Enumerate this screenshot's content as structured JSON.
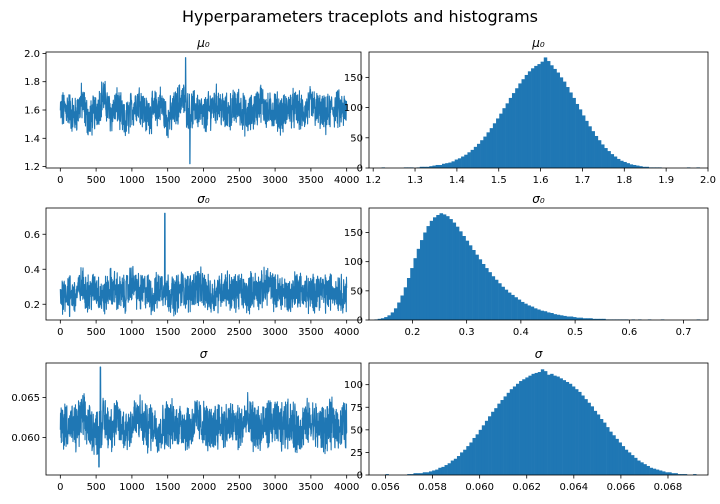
{
  "figure": {
    "title": "Hyperparameters traceplots and histograms",
    "series_color": "#1f77b4"
  },
  "chart_data": [
    {
      "type": "line",
      "title": "μ₀",
      "xlabel": "",
      "ylabel": "",
      "xlim": [
        -200,
        4200
      ],
      "ylim": [
        1.19,
        2.01
      ],
      "xticks": [
        0,
        500,
        1000,
        1500,
        2000,
        2500,
        3000,
        3500,
        4000
      ],
      "yticks": [
        1.2,
        1.4,
        1.6,
        1.8,
        2.0
      ],
      "ytick_labels": [
        "1.2",
        "1.4",
        "1.6",
        "1.8",
        "2.0"
      ],
      "n_samples": 4000,
      "series": [
        {
          "x_step": 100,
          "values": [
            1.58,
            1.62,
            1.55,
            1.66,
            1.52,
            1.6,
            1.7,
            1.57,
            1.63,
            1.5,
            1.61,
            1.67,
            1.56,
            1.59,
            1.64,
            1.53,
            1.6,
            1.69,
            1.58,
            1.62,
            1.55,
            1.61,
            1.65,
            1.57,
            1.6,
            1.63,
            1.54,
            1.59,
            1.66,
            1.58,
            1.61,
            1.56,
            1.62,
            1.6,
            1.57,
            1.64,
            1.59,
            1.55,
            1.61,
            1.6,
            1.58
          ]
        }
      ],
      "summary": {
        "typical_band": [
          1.42,
          1.78
        ],
        "max": 1.97,
        "max_at": 1750,
        "min": 1.22,
        "min_at": 1810
      }
    },
    {
      "type": "bar",
      "title": "μ₀",
      "xlim": [
        1.19,
        2.0
      ],
      "ylim": [
        0,
        192
      ],
      "xticks": [
        1.2,
        1.3,
        1.4,
        1.5,
        1.6,
        1.7,
        1.8,
        1.9,
        2.0
      ],
      "xtick_labels": [
        "1.2",
        "1.3",
        "1.4",
        "1.5",
        "1.6",
        "1.7",
        "1.8",
        "1.9",
        "2.0"
      ],
      "yticks": [
        0,
        50,
        100,
        150
      ],
      "bin_range": [
        1.22,
        1.98
      ],
      "n_bins": 100,
      "distribution": {
        "mode": 1.61,
        "peak_count": 183,
        "spread": 0.082
      },
      "values": [
        1,
        0,
        0,
        0,
        0,
        0,
        0,
        1,
        1,
        1,
        0,
        1,
        2,
        2,
        2,
        3,
        4,
        5,
        5,
        7,
        8,
        9,
        11,
        14,
        16,
        19,
        22,
        26,
        30,
        35,
        40,
        46,
        52,
        59,
        66,
        74,
        82,
        90,
        99,
        107,
        116,
        124,
        132,
        140,
        147,
        154,
        160,
        165,
        169,
        172,
        176,
        183,
        177,
        170,
        164,
        158,
        150,
        143,
        134,
        125,
        116,
        106,
        97,
        87,
        78,
        69,
        61,
        53,
        46,
        39,
        33,
        28,
        23,
        19,
        15,
        12,
        10,
        8,
        6,
        5,
        4,
        3,
        2,
        2,
        1,
        1,
        1,
        1,
        0,
        0,
        0,
        0,
        0,
        0,
        0,
        0,
        1,
        0,
        0,
        1
      ]
    },
    {
      "type": "line",
      "title": "σ₀",
      "xlim": [
        -200,
        4200
      ],
      "ylim": [
        0.11,
        0.75
      ],
      "xticks": [
        0,
        500,
        1000,
        1500,
        2000,
        2500,
        3000,
        3500,
        4000
      ],
      "yticks": [
        0.2,
        0.4,
        0.6
      ],
      "ytick_labels": [
        "0.2",
        "0.4",
        "0.6"
      ],
      "n_samples": 4000,
      "series": [
        {
          "x_step": 100,
          "values": [
            0.25,
            0.28,
            0.24,
            0.31,
            0.26,
            0.29,
            0.23,
            0.3,
            0.27,
            0.25,
            0.33,
            0.26,
            0.28,
            0.24,
            0.3,
            0.27,
            0.25,
            0.29,
            0.26,
            0.31,
            0.28,
            0.24,
            0.27,
            0.3,
            0.26,
            0.28,
            0.25,
            0.29,
            0.27,
            0.32,
            0.26,
            0.28,
            0.24,
            0.3,
            0.27,
            0.25,
            0.29,
            0.26,
            0.28,
            0.27,
            0.26
          ]
        }
      ],
      "summary": {
        "typical_band": [
          0.16,
          0.45
        ],
        "max": 0.72,
        "max_at": 1460,
        "min": 0.13,
        "min_at": 130
      }
    },
    {
      "type": "bar",
      "title": "σ₀",
      "xlim": [
        0.12,
        0.745
      ],
      "ylim": [
        0,
        192
      ],
      "xticks": [
        0.2,
        0.3,
        0.4,
        0.5,
        0.6,
        0.7
      ],
      "xtick_labels": [
        "0.2",
        "0.3",
        "0.4",
        "0.5",
        "0.6",
        "0.7"
      ],
      "yticks": [
        0,
        50,
        100,
        150
      ],
      "bin_range": [
        0.13,
        0.73
      ],
      "n_bins": 100,
      "distribution": {
        "mode": 0.25,
        "peak_count": 183,
        "shape": "right-skewed"
      },
      "values": [
        1,
        2,
        3,
        5,
        8,
        13,
        20,
        30,
        42,
        56,
        72,
        89,
        106,
        122,
        137,
        150,
        161,
        170,
        176,
        180,
        183,
        181,
        178,
        173,
        167,
        160,
        152,
        144,
        136,
        128,
        120,
        112,
        104,
        96,
        89,
        82,
        75,
        69,
        63,
        57,
        52,
        47,
        43,
        39,
        35,
        31,
        28,
        25,
        23,
        20,
        18,
        16,
        15,
        13,
        12,
        10,
        9,
        8,
        7,
        6,
        6,
        5,
        4,
        4,
        3,
        3,
        3,
        2,
        2,
        2,
        2,
        1,
        1,
        1,
        1,
        1,
        1,
        1,
        0,
        1,
        0,
        1,
        0,
        0,
        1,
        0,
        0,
        0,
        1,
        0,
        0,
        0,
        0,
        0,
        0,
        0,
        0,
        0,
        0,
        1
      ]
    },
    {
      "type": "line",
      "title": "σ",
      "xlim": [
        -200,
        4200
      ],
      "ylim": [
        0.0553,
        0.0693
      ],
      "xticks": [
        0,
        500,
        1000,
        1500,
        2000,
        2500,
        3000,
        3500,
        4000
      ],
      "yticks": [
        0.06,
        0.065
      ],
      "ytick_labels": [
        "0.060",
        "0.065"
      ],
      "n_samples": 4000,
      "series": [
        {
          "x_step": 100,
          "values": [
            0.0612,
            0.0618,
            0.0608,
            0.0624,
            0.0615,
            0.0606,
            0.0621,
            0.0613,
            0.0619,
            0.0609,
            0.0617,
            0.0625,
            0.0611,
            0.0616,
            0.0607,
            0.062,
            0.0614,
            0.0618,
            0.061,
            0.0622,
            0.0615,
            0.0608,
            0.0619,
            0.0613,
            0.0617,
            0.0611,
            0.0623,
            0.0614,
            0.0609,
            0.0618,
            0.0616,
            0.0612,
            0.0621,
            0.0607,
            0.0615,
            0.0619,
            0.0613,
            0.061,
            0.0617,
            0.0614,
            0.0616
          ]
        }
      ],
      "summary": {
        "typical_band": [
          0.0577,
          0.0657
        ],
        "max": 0.0688,
        "max_at": 560,
        "min": 0.0563,
        "min_at": 540
      }
    },
    {
      "type": "bar",
      "title": "σ",
      "xlim": [
        0.0553,
        0.0697
      ],
      "ylim": [
        0,
        124
      ],
      "xticks": [
        0.056,
        0.058,
        0.06,
        0.062,
        0.064,
        0.066,
        0.068
      ],
      "xtick_labels": [
        "0.056",
        "0.058",
        "0.060",
        "0.062",
        "0.064",
        "0.066",
        "0.068"
      ],
      "yticks": [
        0,
        25,
        50,
        75,
        100
      ],
      "bin_range": [
        0.056,
        0.0692
      ],
      "n_bins": 100,
      "distribution": {
        "mode": 0.0617,
        "peak_count": 117,
        "spread": 0.0017
      },
      "values": [
        1,
        0,
        0,
        0,
        0,
        0,
        0,
        1,
        1,
        2,
        2,
        2,
        3,
        3,
        4,
        5,
        6,
        8,
        9,
        11,
        13,
        16,
        18,
        21,
        25,
        28,
        32,
        36,
        41,
        45,
        50,
        55,
        60,
        65,
        70,
        74,
        79,
        83,
        87,
        91,
        95,
        98,
        101,
        104,
        106,
        108,
        110,
        112,
        113,
        114,
        117,
        115,
        111,
        112,
        110,
        109,
        107,
        105,
        103,
        101,
        98,
        95,
        92,
        88,
        84,
        80,
        76,
        71,
        67,
        62,
        58,
        53,
        48,
        44,
        40,
        36,
        32,
        28,
        25,
        22,
        19,
        16,
        14,
        12,
        10,
        8,
        7,
        6,
        5,
        4,
        3,
        3,
        2,
        2,
        1,
        1,
        1,
        0,
        0,
        1
      ]
    }
  ]
}
